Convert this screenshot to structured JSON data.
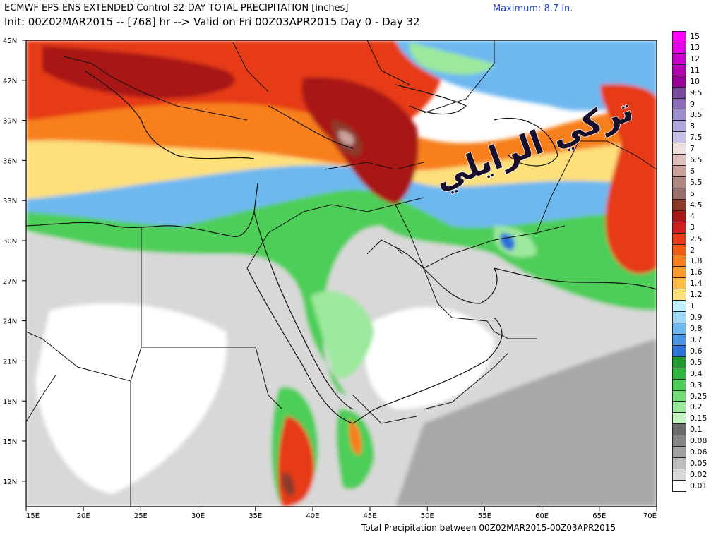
{
  "header": {
    "title_line1": "ECMWF EPS-ENS EXTENDED Control 32-DAY TOTAL PRECIPITATION [inches]",
    "title_line2": "Init: 00Z02MAR2015 -- [768] hr --> Valid on Fri 00Z03APR2015  Day 0 - Day 32",
    "maximum": "Maximum:   8.7 in."
  },
  "footer": "Total Precipitation between 00Z02MAR2015-00Z03APR2015",
  "watermark": "تركي الرايلي",
  "map": {
    "lat_labels": [
      "45N",
      "42N",
      "39N",
      "36N",
      "33N",
      "30N",
      "27N",
      "24N",
      "21N",
      "18N",
      "15N",
      "12N"
    ],
    "lon_labels": [
      "15E",
      "20E",
      "25E",
      "30E",
      "35E",
      "40E",
      "45E",
      "50E",
      "55E",
      "60E",
      "65E",
      "70E"
    ]
  },
  "legend": {
    "labels": [
      "15",
      "13",
      "12",
      "11",
      "10",
      "9.5",
      "9",
      "8.5",
      "8",
      "7.5",
      "7",
      "6.5",
      "6",
      "5.5",
      "5",
      "4.5",
      "4",
      "3",
      "2.5",
      "2",
      "1.8",
      "1.6",
      "1.4",
      "1.2",
      "1",
      "0.9",
      "0.8",
      "0.7",
      "0.6",
      "0.5",
      "0.4",
      "0.3",
      "0.25",
      "0.2",
      "0.15",
      "0.1",
      "0.08",
      "0.06",
      "0.05",
      "0.02",
      "0.01"
    ],
    "colors": [
      "#ff00ff",
      "#e600e6",
      "#cc00cc",
      "#b300b3",
      "#990099",
      "#7a4a9e",
      "#8a6cb8",
      "#9c8fcc",
      "#b0a8dc",
      "#c8c2e8",
      "#f0e0e0",
      "#e0c0bc",
      "#c9a29c",
      "#b08882",
      "#9a6e6a",
      "#8b3a2a",
      "#a81818",
      "#d12020",
      "#e63a18",
      "#f25c10",
      "#f77f1c",
      "#fb9a2c",
      "#fcbc48",
      "#fde07a",
      "#c0f0ff",
      "#a0d8f8",
      "#6eb8f0",
      "#4a96e6",
      "#2c72d8",
      "#1f9a2e",
      "#2eb83e",
      "#4dce58",
      "#74dc78",
      "#9ce89c",
      "#c4f4c0",
      "#6a6a6a",
      "#858585",
      "#a0a0a0",
      "#bdbdbd",
      "#d8d8d8",
      "#ffffff"
    ]
  },
  "colors": {
    "gray_light": "#d8d8d8",
    "gray_mid": "#a8a8a8",
    "gray_dark": "#7a7a7a",
    "green_light": "#9ce89c",
    "green": "#4dce58",
    "green_dark": "#1f9a2e",
    "blue_light": "#6eb8f0",
    "blue": "#2c72d8",
    "yellow": "#fde07a",
    "orange": "#f77f1c",
    "red": "#e63a18",
    "red_dark": "#a81818",
    "brown": "#8b3a2a",
    "mauve": "#c9a29c",
    "pale": "#f0e0e0",
    "watermark": "#1a0f2a"
  }
}
